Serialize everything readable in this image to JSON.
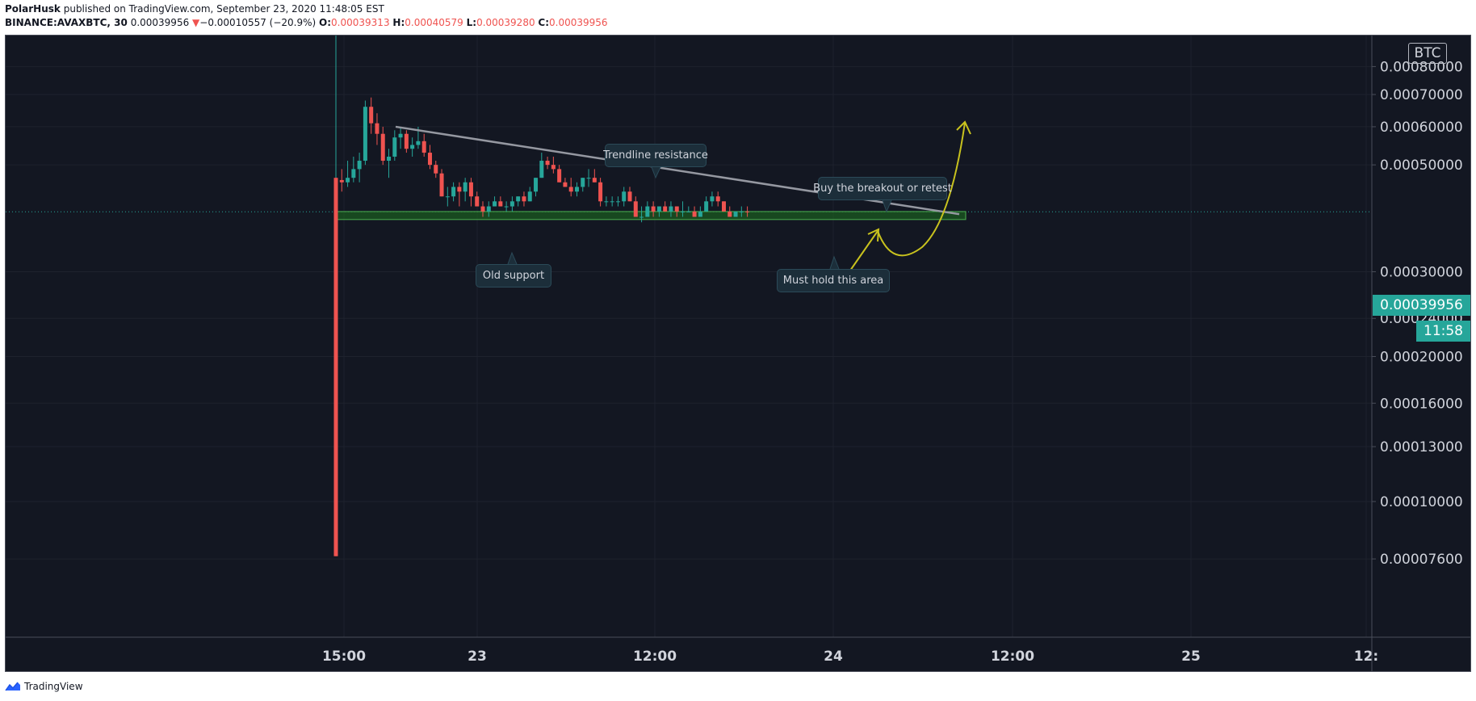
{
  "header": {
    "author": "PolarHusk",
    "published_text": "published on TradingView.com, September 23, 2020 11:48:05 EST",
    "symbol": "BINANCE:AVAXBTC, 30",
    "last": "0.00039956",
    "arrow": "▼",
    "change": "−0.00010557 (−20.9%)",
    "o_label": "O:",
    "o": "0.00039313",
    "h_label": "H:",
    "h": "0.00040579",
    "l_label": "L:",
    "l": "0.00039280",
    "c_label": "C:",
    "c": "0.00039956"
  },
  "footer": {
    "brand": "TradingView"
  },
  "colors": {
    "background": "#131722",
    "up": "#26a69a",
    "down": "#ef5350",
    "trendline": "#9598a1",
    "support_zone": "#1b5e20",
    "support_border": "#4caf50",
    "projection": "#c8c21e",
    "grid": "#1e222d",
    "axis_text": "#d1d4dc"
  },
  "chart_data": {
    "type": "candlestick",
    "currency": "BTC",
    "y_scale": "log",
    "y_ticks": [
      "0.00080000",
      "0.00070000",
      "0.00060000",
      "0.00050000",
      "0.00030000",
      "0.00024000",
      "0.00020000",
      "0.00016000",
      "0.00013000",
      "0.00010000",
      "0.00007600"
    ],
    "x_ticks": [
      "15:00",
      "23",
      "12:00",
      "24",
      "12:00",
      "25",
      "12:"
    ],
    "last_price": "0.00039956",
    "countdown": "11:58",
    "candles": [
      [
        0.00047,
        0.00047,
        7.7e-05,
        7.7e-05
      ],
      [
        0.000465,
        0.00049,
        0.00044,
        0.00046
      ],
      [
        0.00046,
        0.00051,
        0.00045,
        0.00047
      ],
      [
        0.00047,
        0.00052,
        0.00046,
        0.00049
      ],
      [
        0.00049,
        0.00053,
        0.00046,
        0.00051
      ],
      [
        0.00051,
        0.00068,
        0.0005,
        0.00066
      ],
      [
        0.00066,
        0.00069,
        0.00058,
        0.00061
      ],
      [
        0.00061,
        0.00064,
        0.00055,
        0.00058
      ],
      [
        0.00058,
        0.0006,
        0.0005,
        0.00051
      ],
      [
        0.00051,
        0.00054,
        0.00047,
        0.00052
      ],
      [
        0.00052,
        0.00059,
        0.00051,
        0.00057
      ],
      [
        0.00057,
        0.0006,
        0.00054,
        0.00058
      ],
      [
        0.00058,
        0.00059,
        0.00053,
        0.00054
      ],
      [
        0.00054,
        0.00057,
        0.00052,
        0.00055
      ],
      [
        0.00055,
        0.0006,
        0.00054,
        0.00056
      ],
      [
        0.00056,
        0.00058,
        0.00052,
        0.00053
      ],
      [
        0.00053,
        0.00055,
        0.00049,
        0.0005
      ],
      [
        0.0005,
        0.00051,
        0.00047,
        0.00048
      ],
      [
        0.00048,
        0.00049,
        0.00043,
        0.00043
      ],
      [
        0.00043,
        0.00045,
        0.00041,
        0.00043
      ],
      [
        0.00043,
        0.00046,
        0.00042,
        0.00045
      ],
      [
        0.00045,
        0.00046,
        0.00041,
        0.00044
      ],
      [
        0.00044,
        0.00047,
        0.00042,
        0.00046
      ],
      [
        0.00046,
        0.00047,
        0.00041,
        0.00043
      ],
      [
        0.00043,
        0.00044,
        0.00041,
        0.00041
      ],
      [
        0.00041,
        0.00042,
        0.00039,
        0.0004
      ],
      [
        0.0004,
        0.00042,
        0.00039,
        0.00041
      ],
      [
        0.00041,
        0.00043,
        0.00041,
        0.00042
      ],
      [
        0.00042,
        0.00043,
        0.00041,
        0.00041
      ],
      [
        0.00041,
        0.00042,
        0.0004,
        0.00041
      ],
      [
        0.00041,
        0.00043,
        0.0004,
        0.00042
      ],
      [
        0.00042,
        0.00043,
        0.00041,
        0.00043
      ],
      [
        0.00043,
        0.00044,
        0.00041,
        0.00042
      ],
      [
        0.00042,
        0.00045,
        0.00042,
        0.00044
      ],
      [
        0.00044,
        0.00047,
        0.00043,
        0.00047
      ],
      [
        0.00047,
        0.00053,
        0.00047,
        0.00051
      ],
      [
        0.00051,
        0.00052,
        0.00049,
        0.0005
      ],
      [
        0.0005,
        0.00052,
        0.00048,
        0.00049
      ],
      [
        0.00049,
        0.0005,
        0.00046,
        0.00046
      ],
      [
        0.00046,
        0.00047,
        0.00045,
        0.00045
      ],
      [
        0.00045,
        0.00047,
        0.00043,
        0.00044
      ],
      [
        0.00044,
        0.00046,
        0.00043,
        0.00045
      ],
      [
        0.00045,
        0.00047,
        0.00044,
        0.00047
      ],
      [
        0.00047,
        0.00049,
        0.00045,
        0.00047
      ],
      [
        0.00047,
        0.00049,
        0.00046,
        0.00046
      ],
      [
        0.00046,
        0.00047,
        0.00041,
        0.00042
      ],
      [
        0.00042,
        0.00043,
        0.00041,
        0.00042
      ],
      [
        0.00042,
        0.00043,
        0.00041,
        0.00042
      ],
      [
        0.00042,
        0.00043,
        0.00041,
        0.00042
      ],
      [
        0.00042,
        0.00045,
        0.00041,
        0.00044
      ],
      [
        0.00044,
        0.00045,
        0.00042,
        0.00042
      ],
      [
        0.00042,
        0.00043,
        0.00039,
        0.00039
      ],
      [
        0.00039,
        0.00041,
        0.00038,
        0.00039
      ],
      [
        0.00039,
        0.00042,
        0.00039,
        0.00041
      ],
      [
        0.00041,
        0.00042,
        0.00039,
        0.0004
      ],
      [
        0.0004,
        0.00041,
        0.00039,
        0.00041
      ],
      [
        0.00041,
        0.00042,
        0.0004,
        0.0004
      ],
      [
        0.0004,
        0.00042,
        0.00039,
        0.00041
      ],
      [
        0.00041,
        0.00041,
        0.00039,
        0.0004
      ],
      [
        0.0004,
        0.00042,
        0.00039,
        0.0004
      ],
      [
        0.0004,
        0.00041,
        0.0004,
        0.0004
      ],
      [
        0.0004,
        0.00041,
        0.00039,
        0.00039
      ],
      [
        0.00039,
        0.00041,
        0.00039,
        0.0004
      ],
      [
        0.0004,
        0.00043,
        0.0004,
        0.00042
      ],
      [
        0.00042,
        0.00044,
        0.00041,
        0.00043
      ],
      [
        0.00043,
        0.00044,
        0.00041,
        0.00042
      ],
      [
        0.00042,
        0.00042,
        0.0004,
        0.0004
      ],
      [
        0.0004,
        0.00041,
        0.00039,
        0.00039
      ],
      [
        0.00039,
        0.0004,
        0.00039,
        0.0004
      ],
      [
        0.0004,
        0.00041,
        0.00039,
        0.0004
      ],
      [
        0.0004,
        0.00041,
        0.00039,
        0.000399
      ]
    ],
    "trendline": {
      "from_price": 0.0006,
      "to_price": 0.000395
    },
    "support_zone": {
      "top": 0.0004,
      "bottom": 0.000385
    },
    "annotations": [
      "Trendline resistance",
      "Buy the breakout or retest",
      "Old support",
      "Must hold this area"
    ]
  }
}
